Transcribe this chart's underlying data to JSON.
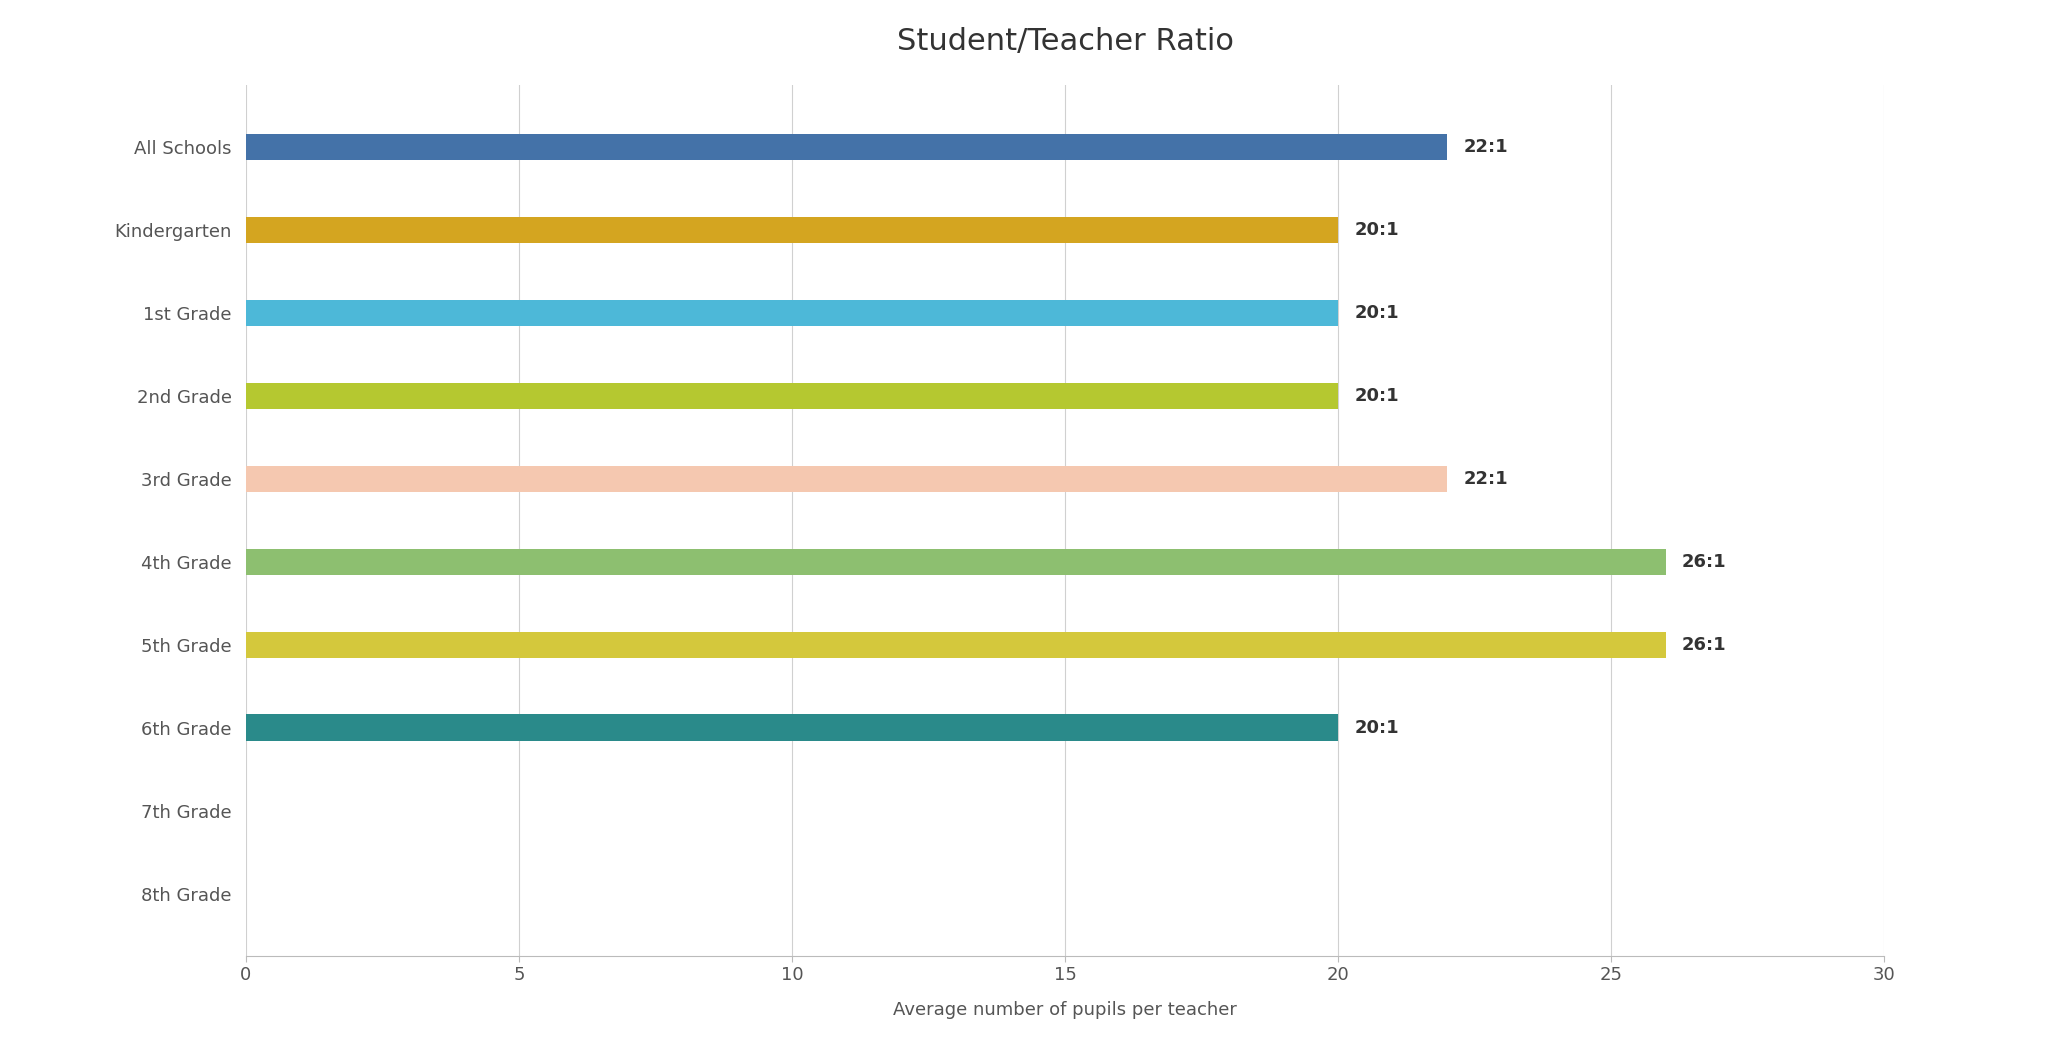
{
  "title": "Student/Teacher Ratio",
  "xlabel": "Average number of pupils per teacher",
  "categories": [
    "All Schools",
    "Kindergarten",
    "1st Grade",
    "2nd Grade",
    "3rd Grade",
    "4th Grade",
    "5th Grade",
    "6th Grade",
    "7th Grade",
    "8th Grade"
  ],
  "values": [
    22,
    20,
    20,
    20,
    22,
    26,
    26,
    20,
    0,
    0
  ],
  "labels": [
    "22:1",
    "20:1",
    "20:1",
    "20:1",
    "22:1",
    "26:1",
    "26:1",
    "20:1",
    "",
    ""
  ],
  "colors": [
    "#4472a8",
    "#d4a520",
    "#4db8d8",
    "#b5c830",
    "#f5c8b0",
    "#8dbf70",
    "#d4c83c",
    "#2a8a8a",
    "#ffffff",
    "#ffffff"
  ],
  "xlim": [
    0,
    30
  ],
  "xticks": [
    0,
    5,
    10,
    15,
    20,
    25,
    30
  ],
  "background_color": "#ffffff",
  "grid_color": "#d0d0d0",
  "bar_height": 0.32,
  "title_fontsize": 22,
  "label_fontsize": 13,
  "tick_fontsize": 13,
  "annotation_fontsize": 13,
  "ylabel_color": "#555555",
  "title_color": "#333333"
}
